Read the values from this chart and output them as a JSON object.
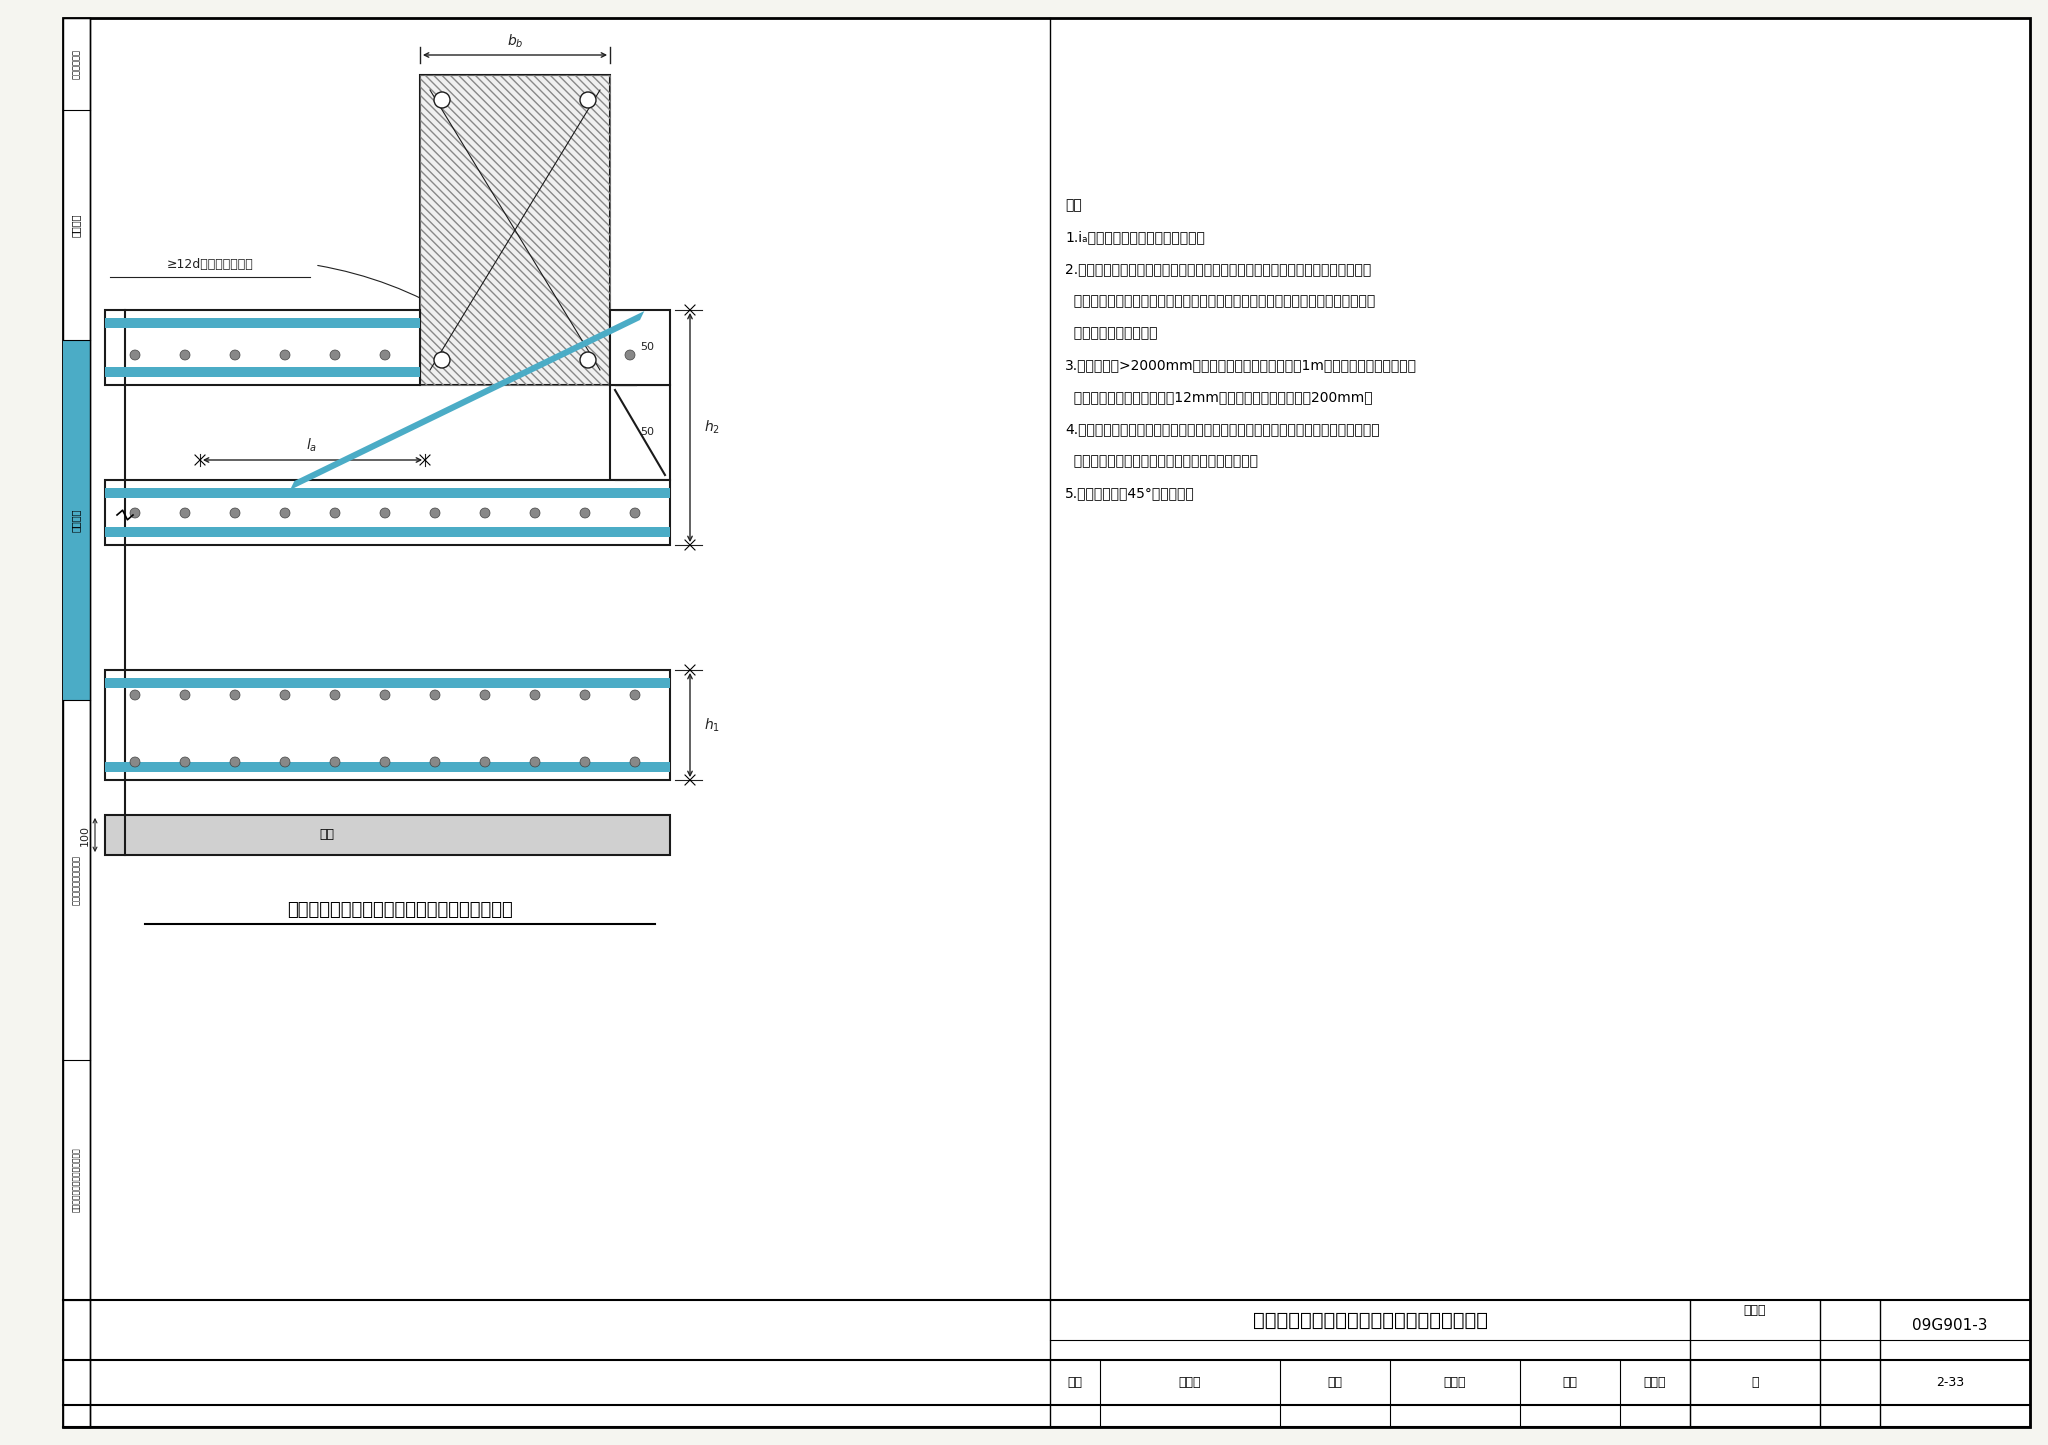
{
  "title": "梁板式筏形基础平板变截面部位钉筋排布构造",
  "drawing_number": "09G901-3",
  "page": "2-33",
  "subtitle": "板顶、板底均有高差时平板变截面部位钉筋构造",
  "bg_color": "#f5f5f0",
  "white": "#ffffff",
  "border_color": "#000000",
  "blue_color": "#4BACC6",
  "concrete_fill": "#f0f0f0",
  "screed_fill": "#d0d0d0",
  "notes_title": "注：",
  "note1": "1.iₐ为非抗震纵向钉筋的锁固长度。",
  "note2": "2.基础平板同一层面的交叉钉筋，何向钉筋在上，何向钉筋在下，应按具体设计说",
  "note2b": "  明。当设计未作说明时，应按板跨长度将短跨方向的钉筋置于板厚外侧，另一方向",
  "note2c": "  的钉筋置于板厚内侧。",
  "note3": "3.当基础板厚>2000mm时，宜在板厚方向间距不超过1m设置与板面平行的构造钉",
  "note3b": "  筋网片，钉筋直径不宜小于12mm，纵横方向间距不宜大于200mm。",
  "note4": "4.当实际工程的梁板式筏形基础平板与本图不同时，其构造应由设计者设计；当要求",
  "note4b": "  施工参照本图构造施工时，应提供相应变更说明。",
  "note5": "5.板底台阶可为45°或接设计。",
  "label_bb": "bₙ",
  "label_50": "50",
  "label_50b": "50",
  "label_la": "lₐ",
  "label_h2": "h₂",
  "label_h1": "h₁",
  "label_100": "100",
  "label_dj": "垫层",
  "label_ann": "≥12d且至少到棁中线",
  "label_subtitle": "板顶、板底均有高差时平板变截面部位钉筋构造",
  "tab1": "一般构造做法",
  "tab2": "筏形基础",
  "tab3": "筏形基础",
  "tab4": "筱形基础和地下室结构",
  "tab5": "独立基础、条形基础、桶基承台",
  "bottom_title": "梁板式筏形基础平板变截面部位钉筋排布构造",
  "label_tuhao": "图集号",
  "label_shenhe": "审核",
  "label_huangzhigang": "黄志刚",
  "label_jiaodui": "校对",
  "label_zhanggongwen": "张工文",
  "label_sheji": "设计",
  "label_wanghuaiyuan": "王怀元",
  "label_ye": "页",
  "page_num": "2-33"
}
